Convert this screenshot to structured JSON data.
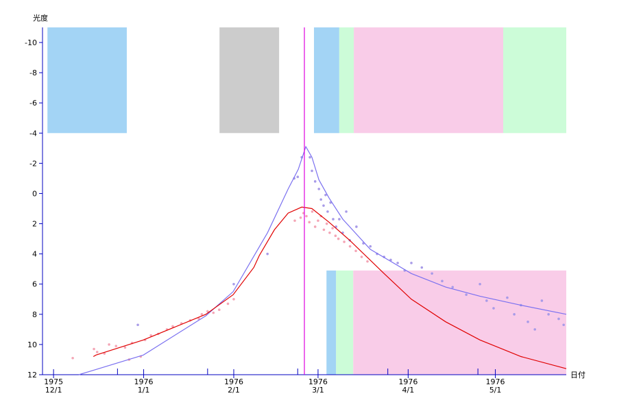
{
  "chart_data": {
    "type": "scatter",
    "y_label": "光度",
    "x_label": "日付",
    "axis_color": "#0000c0",
    "xlim": [
      -3.8,
      176.4
    ],
    "ylim": [
      12,
      -11
    ],
    "yticks": [
      -10,
      -8,
      -6,
      -4,
      -2,
      0,
      2,
      4,
      6,
      8,
      10,
      12
    ],
    "xticks": [
      {
        "value": 0,
        "label": "1975\n12/1"
      },
      {
        "value": 31,
        "label": "1976\n1/1"
      },
      {
        "value": 62,
        "label": "1976\n2/1"
      },
      {
        "value": 91,
        "label": "1976\n3/1"
      },
      {
        "value": 122,
        "label": "1976\n4/1"
      },
      {
        "value": 152,
        "label": "1976\n5/1"
      }
    ],
    "xminorticks": [
      22,
      53,
      84,
      115,
      146
    ],
    "marker_x": 86.3,
    "marker_color": "#e000e0",
    "bands": [
      {
        "x": [
          -2.1,
          25.2
        ],
        "y": [
          -11,
          -4
        ],
        "color": "#a3d4f5"
      },
      {
        "x": [
          57.1,
          77.6
        ],
        "y": [
          -11,
          -4
        ],
        "color": "#cccccc"
      },
      {
        "x": [
          89.6,
          98.3
        ],
        "y": [
          -11,
          -4
        ],
        "color": "#a3d4f5"
      },
      {
        "x": [
          98.3,
          103.3
        ],
        "y": [
          -11,
          -4
        ],
        "color": "#ccfcd8"
      },
      {
        "x": [
          103.3,
          154.7
        ],
        "y": [
          -11,
          -4
        ],
        "color": "#f9cce8"
      },
      {
        "x": [
          154.7,
          176.4
        ],
        "y": [
          -11,
          -4
        ],
        "color": "#ccfcd8"
      },
      {
        "x": [
          93.9,
          97.2
        ],
        "y": [
          5.1,
          12
        ],
        "color": "#a3d4f5"
      },
      {
        "x": [
          97.2,
          103.1
        ],
        "y": [
          5.1,
          12
        ],
        "color": "#ccfcd8"
      },
      {
        "x": [
          103.1,
          176.4
        ],
        "y": [
          5.1,
          12
        ],
        "color": "#f9cce8"
      }
    ],
    "series": [
      {
        "kind": "points",
        "color": "#f4a6b6",
        "x": [
          6.6,
          13.9,
          15,
          17.5,
          19.1,
          21.5,
          24.6,
          27,
          31.5,
          33.5,
          36,
          39,
          41,
          44,
          47,
          50,
          51,
          53,
          55,
          57,
          60,
          62,
          83,
          85,
          86,
          87,
          88,
          89,
          90,
          91,
          92,
          93,
          94,
          95,
          96,
          97,
          98,
          100,
          102,
          104,
          106,
          108,
          26,
          30
        ],
        "values": [
          10.9,
          10.3,
          10.5,
          10.6,
          10.0,
          10.1,
          10.2,
          9.9,
          9.7,
          9.4,
          9.3,
          9.0,
          8.8,
          8.6,
          8.4,
          8.3,
          8.0,
          7.8,
          7.9,
          7.7,
          7.3,
          7.0,
          1.8,
          1.6,
          1.3,
          1.5,
          1.9,
          1.2,
          2.2,
          1.8,
          1.5,
          2.4,
          2.0,
          2.6,
          2.3,
          2.8,
          3.0,
          3.2,
          3.5,
          3.8,
          4.2,
          4.5,
          11.0,
          10.8
        ]
      },
      {
        "kind": "points",
        "color": "#a89be8",
        "x": [
          29,
          62,
          73.6,
          82.8,
          84,
          85.4,
          88.2,
          88.9,
          90,
          91.3,
          92,
          92.9,
          93.6,
          94.3,
          95.3,
          96.2,
          97.2,
          98.3,
          99.5,
          100.7,
          101.9,
          104.2,
          106.6,
          109,
          111.3,
          113.7,
          116,
          118.4,
          120.8,
          123.1,
          126.7,
          130.2,
          133.7,
          137.3,
          142,
          146.7,
          149,
          151.4,
          156.1,
          158.5,
          160.8,
          163.2,
          165.6,
          168,
          170.3,
          173.8,
          175.5
        ],
        "values": [
          8.7,
          6.0,
          4.0,
          -1.0,
          -1.1,
          -2.4,
          -2.4,
          -1.5,
          -0.8,
          -0.3,
          0.4,
          0.8,
          0.1,
          1.2,
          0.6,
          1.7,
          2.2,
          1.7,
          2.6,
          1.2,
          3.1,
          2.2,
          3.3,
          3.5,
          4.0,
          4.2,
          4.4,
          4.6,
          5.1,
          4.6,
          4.9,
          5.3,
          5.8,
          6.2,
          6.7,
          6.0,
          7.1,
          7.6,
          6.9,
          8.0,
          7.4,
          8.5,
          9.0,
          7.1,
          8.0,
          8.3,
          8.7
        ]
      },
      {
        "kind": "line",
        "color": "#7a70f0",
        "x": [
          8.7,
          30.9,
          52.4,
          61.8,
          73.6,
          80.7,
          84.2,
          86.8,
          88.9,
          91.3,
          94.8,
          99.5,
          109,
          123.1,
          134.9,
          146.7,
          160.8,
          176.4
        ],
        "values": [
          12,
          10.7,
          8.1,
          6.5,
          2.6,
          -0.3,
          -1.6,
          -3.1,
          -2.4,
          -0.9,
          0.3,
          1.7,
          3.7,
          5.3,
          6.2,
          6.8,
          7.4,
          8.0
        ]
      },
      {
        "kind": "line",
        "color": "#e00000",
        "x": [
          13.7,
          14.6,
          30.9,
          52.4,
          61.8,
          68.9,
          70.8,
          76,
          80.7,
          85.4,
          88.9,
          94.8,
          101.9,
          113.7,
          123.1,
          134.9,
          146.7,
          160.8,
          176.4
        ],
        "values": [
          10.8,
          10.7,
          9.7,
          8.0,
          6.7,
          4.9,
          4.1,
          2.4,
          1.3,
          0.9,
          1.0,
          1.9,
          3.1,
          5.3,
          7.0,
          8.5,
          9.7,
          10.8,
          11.6
        ]
      }
    ]
  }
}
